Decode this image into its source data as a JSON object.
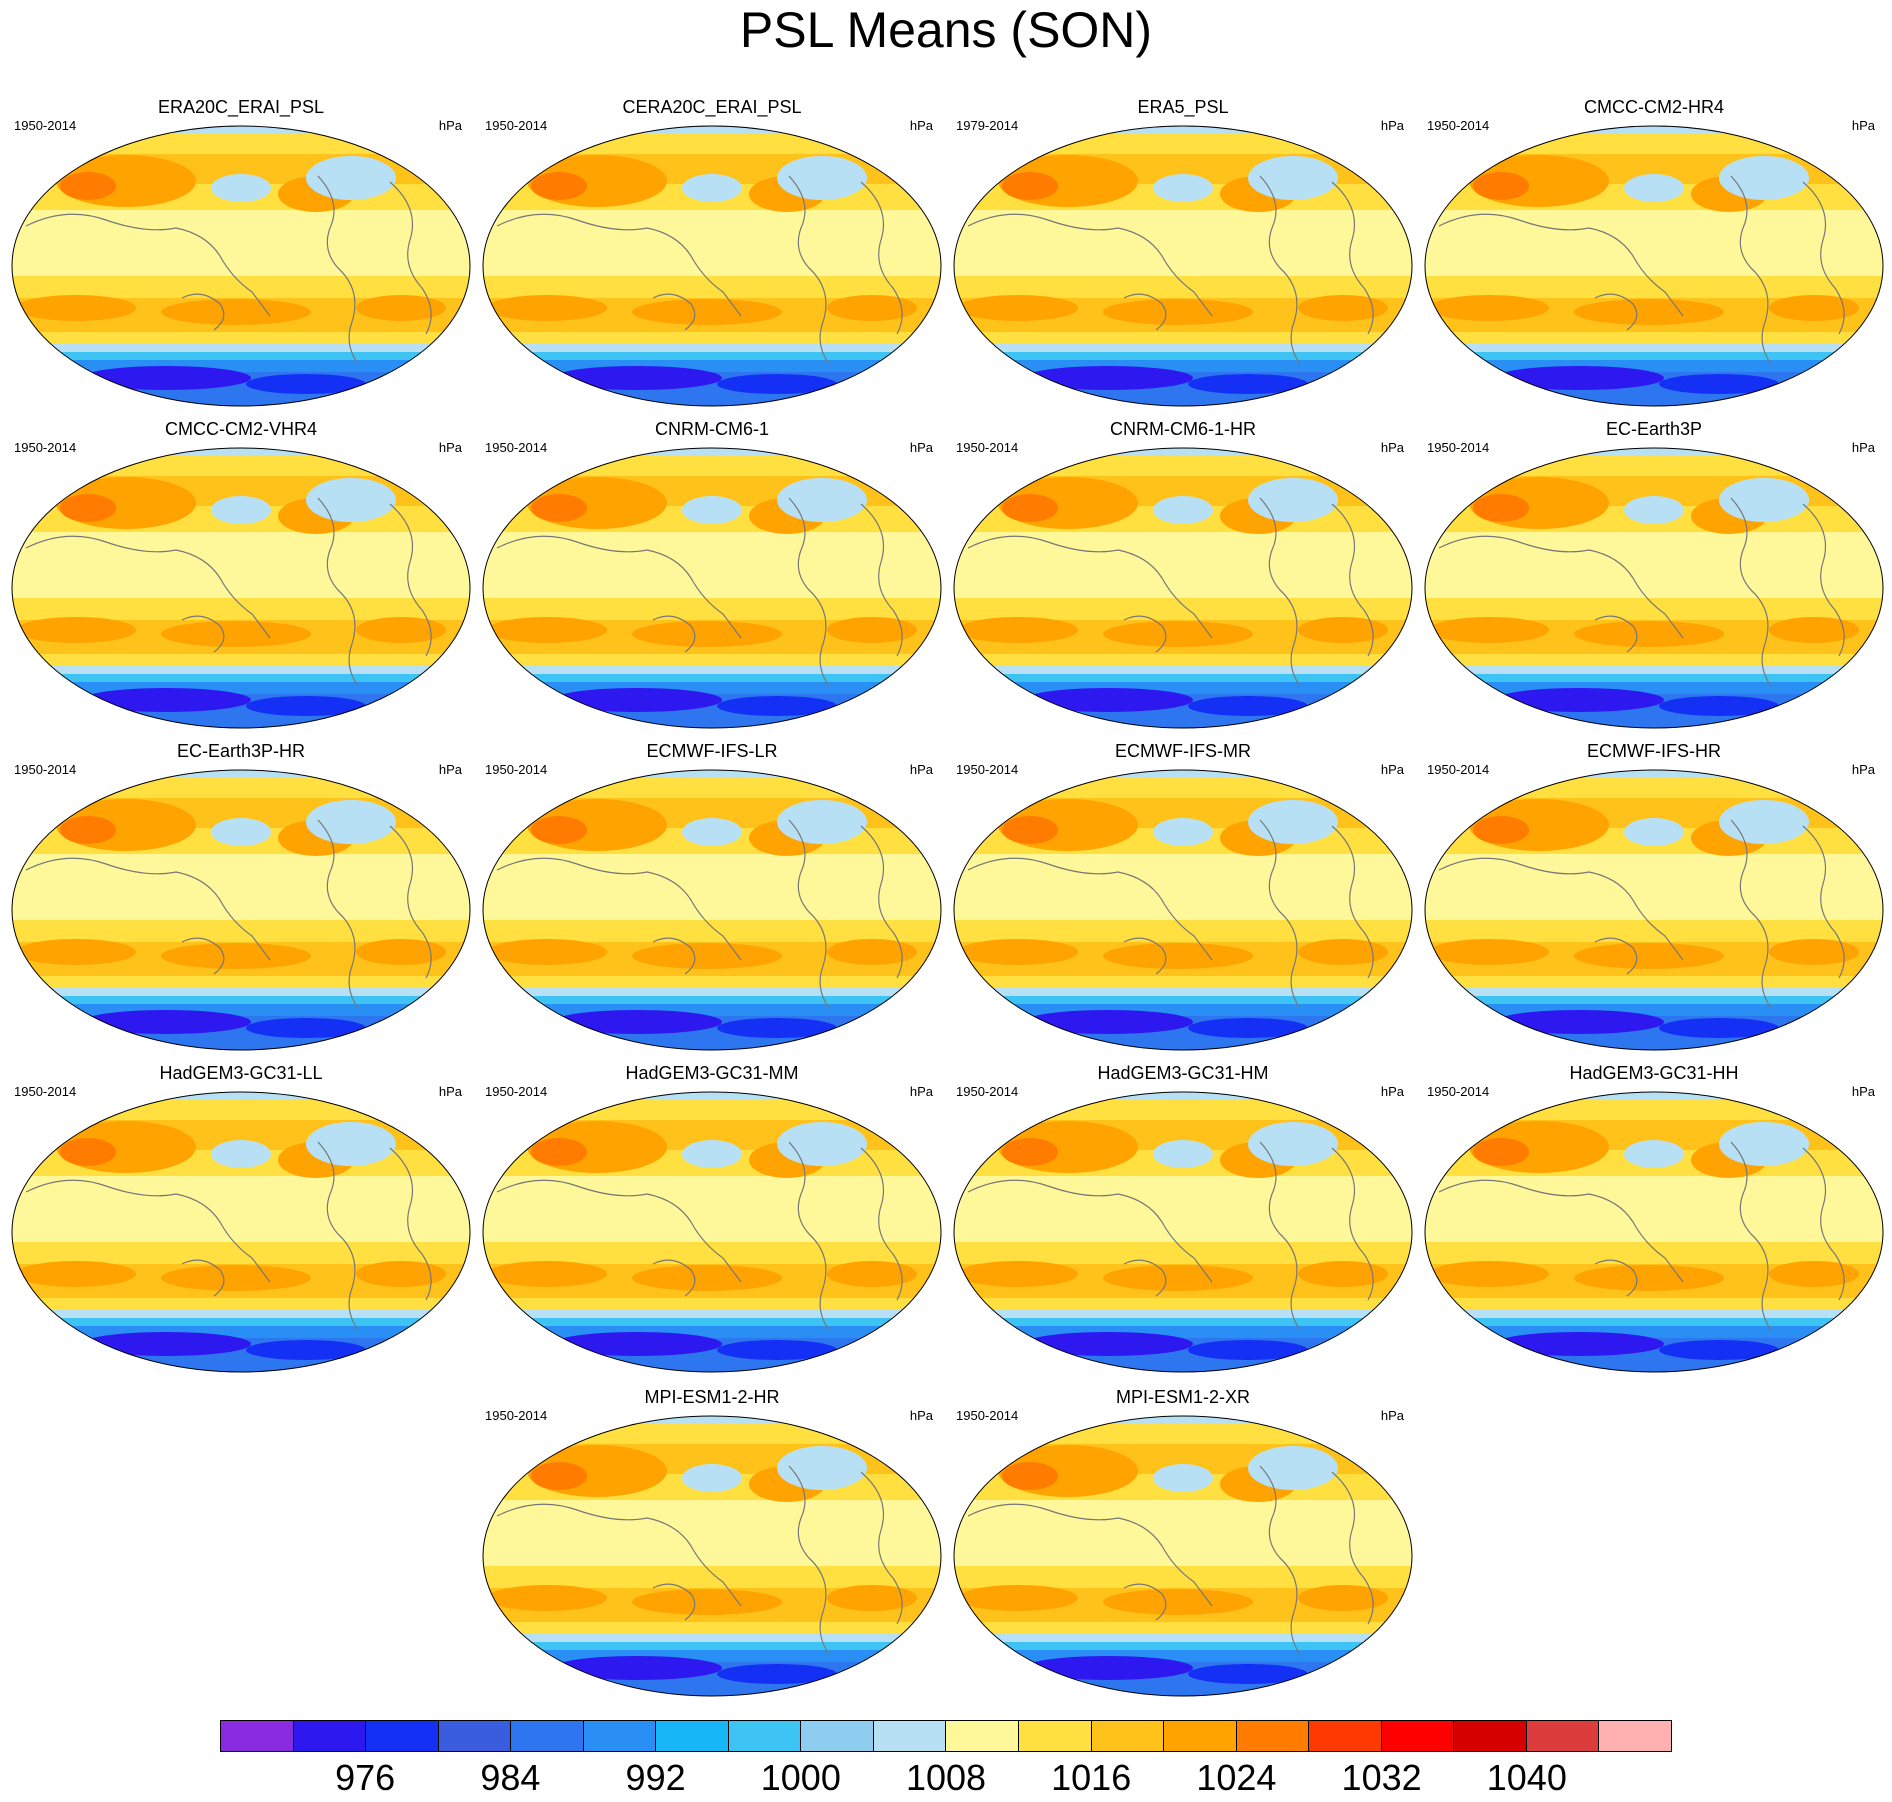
{
  "title": "PSL Means (SON)",
  "chart_data": {
    "type": "heatmap",
    "title": "PSL Means (SON)",
    "units": "hPa",
    "colorbar": {
      "ticks": [
        "976",
        "984",
        "992",
        "1000",
        "1008",
        "1016",
        "1024",
        "1032",
        "1040"
      ],
      "colors": [
        "#8a2be2",
        "#2d18f0",
        "#1530f5",
        "#3a5de0",
        "#2e76f0",
        "#2a8ff5",
        "#17b6f7",
        "#3dc4f5",
        "#8ecdf0",
        "#b8e0f5",
        "#fff89a",
        "#ffe040",
        "#ffc21a",
        "#ffa300",
        "#ff7c00",
        "#ff3a00",
        "#ff0000",
        "#d60000",
        "#dd3c3c",
        "#ffb0b0"
      ]
    },
    "panels": [
      {
        "name": "ERA20C_ERAI_PSL",
        "period": "1950-2014",
        "units": "hPa"
      },
      {
        "name": "CERA20C_ERAI_PSL",
        "period": "1950-2014",
        "units": "hPa"
      },
      {
        "name": "ERA5_PSL",
        "period": "1979-2014",
        "units": "hPa"
      },
      {
        "name": "CMCC-CM2-HR4",
        "period": "1950-2014",
        "units": "hPa"
      },
      {
        "name": "CMCC-CM2-VHR4",
        "period": "1950-2014",
        "units": "hPa"
      },
      {
        "name": "CNRM-CM6-1",
        "period": "1950-2014",
        "units": "hPa"
      },
      {
        "name": "CNRM-CM6-1-HR",
        "period": "1950-2014",
        "units": "hPa"
      },
      {
        "name": "EC-Earth3P",
        "period": "1950-2014",
        "units": "hPa"
      },
      {
        "name": "EC-Earth3P-HR",
        "period": "1950-2014",
        "units": "hPa"
      },
      {
        "name": "ECMWF-IFS-LR",
        "period": "1950-2014",
        "units": "hPa"
      },
      {
        "name": "ECMWF-IFS-MR",
        "period": "1950-2014",
        "units": "hPa"
      },
      {
        "name": "ECMWF-IFS-HR",
        "period": "1950-2014",
        "units": "hPa"
      },
      {
        "name": "HadGEM3-GC31-LL",
        "period": "1950-2014",
        "units": "hPa"
      },
      {
        "name": "HadGEM3-GC31-MM",
        "period": "1950-2014",
        "units": "hPa"
      },
      {
        "name": "HadGEM3-GC31-HM",
        "period": "1950-2014",
        "units": "hPa"
      },
      {
        "name": "HadGEM3-GC31-HH",
        "period": "1950-2014",
        "units": "hPa"
      },
      {
        "name": "MPI-ESM1-2-HR",
        "period": "1950-2014",
        "units": "hPa"
      },
      {
        "name": "MPI-ESM1-2-XR",
        "period": "1950-2014",
        "units": "hPa"
      }
    ]
  }
}
